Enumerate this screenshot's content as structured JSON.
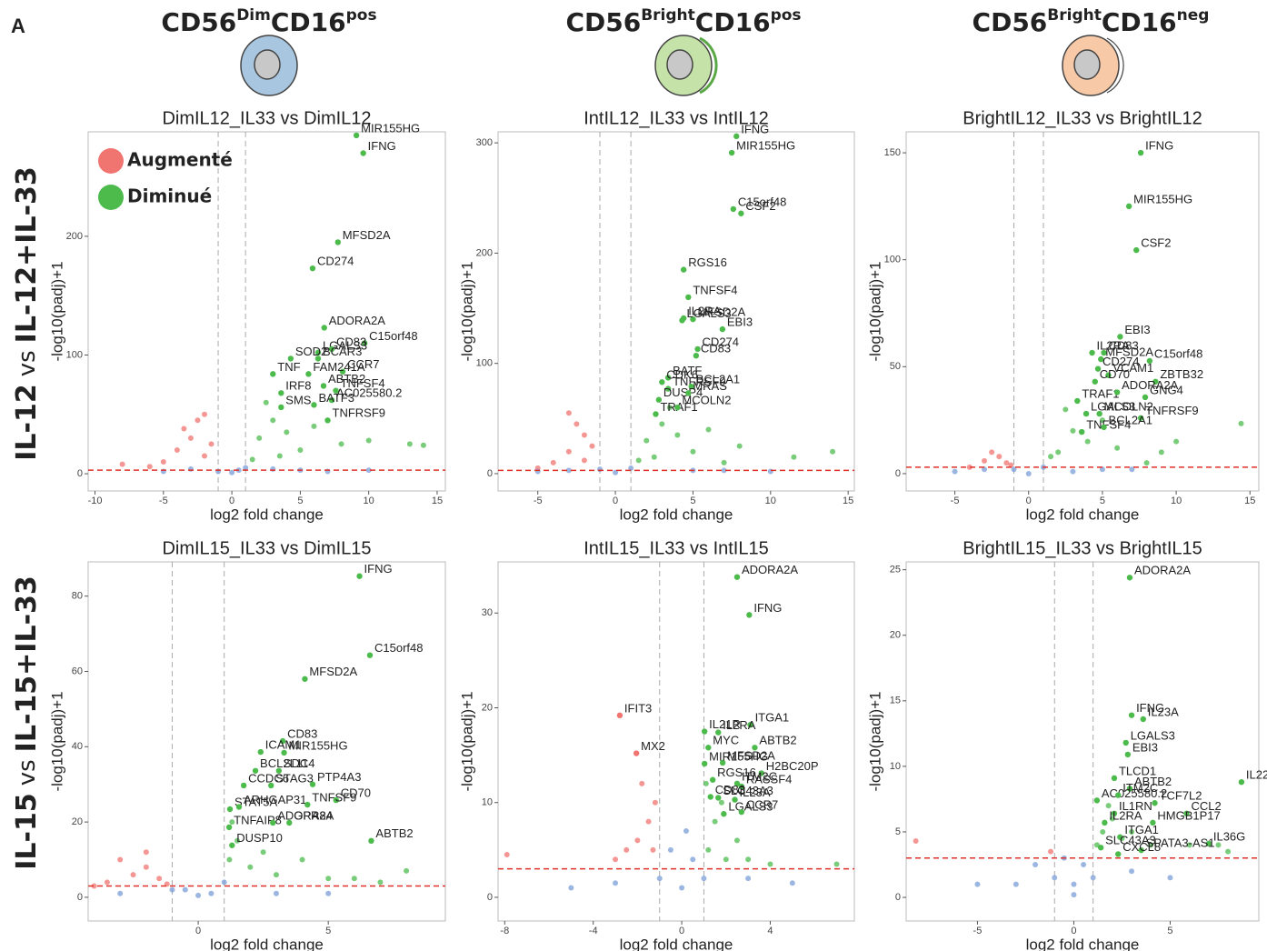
{
  "panel_label": "A",
  "columns": [
    {
      "base1": "CD56",
      "sup1": "Dim",
      "base2": "CD16",
      "sup2": "pos"
    },
    {
      "base1": "CD56",
      "sup1": "Bright",
      "base2": "CD16",
      "sup2": "pos"
    },
    {
      "base1": "CD56",
      "sup1": "Bright",
      "base2": "CD16",
      "sup2": "neg"
    }
  ],
  "rows": [
    {
      "left": "IL-12",
      "middle": "vs",
      "right": "IL-12+IL-33"
    },
    {
      "left": "IL-15",
      "middle": "vs",
      "right": "IL-15+IL-33"
    }
  ],
  "chart_data": [
    {
      "type": "scatter",
      "title": "DimIL12_IL33 vs DimIL12",
      "x_label": "log2 fold change",
      "y_label": "-log10(padj)+1",
      "xlim": [
        -10.5,
        15.6
      ],
      "ylim": [
        -14.5,
        288
      ],
      "xticks": [
        -10,
        -5,
        0,
        5,
        10,
        15
      ],
      "yticks": [
        0,
        100,
        200
      ],
      "thresholds": {
        "x": [
          -1,
          1
        ],
        "y": 3
      },
      "threshold_color": "#e0302a",
      "legend": true,
      "series": [
        {
          "name": "Augmenté",
          "color": "#f07470",
          "x": [
            -3,
            -2,
            -4,
            -2.5,
            -5,
            -3.5,
            -1.5,
            -6,
            -8,
            -2
          ],
          "values": [
            30,
            50,
            20,
            45,
            10,
            38,
            25,
            6,
            8,
            15
          ]
        },
        {
          "name": "Diminué",
          "color": "#4cbb4c",
          "x": [
            2,
            3,
            4,
            2.5,
            5,
            6,
            8,
            10,
            13,
            14,
            3.5,
            1.5
          ],
          "values": [
            30,
            45,
            35,
            60,
            20,
            40,
            25,
            28,
            25,
            24,
            15,
            12
          ]
        },
        {
          "color": "#7b9ed8",
          "x": [
            -1,
            0,
            0.5,
            -3,
            3,
            5,
            -5,
            7,
            10,
            1
          ],
          "values": [
            2,
            1,
            3,
            4,
            4,
            3,
            2,
            2,
            3,
            5
          ]
        }
      ],
      "labels": {
        "genes": [
          "MIR155HG",
          "IFNG",
          "MFSD2A",
          "CD274",
          "ADORA2A",
          "C15orf48",
          "LGALS3",
          "CD83",
          "SOD2",
          "BCAR3",
          "CCR7",
          "TNF",
          "FAM241A",
          "IRF8",
          "ABTB2",
          "TNFSF4",
          "AC025580.2",
          "SMS",
          "BATF3",
          "TNFRSF9"
        ],
        "x": [
          9.1,
          9.6,
          7.75,
          5.9,
          6.75,
          9.7,
          6.3,
          7.3,
          4.3,
          6.3,
          8.1,
          3.0,
          5.6,
          3.6,
          6.7,
          7.6,
          7.3,
          3.6,
          6.0,
          7.0
        ],
        "y": [
          285,
          270,
          195,
          173,
          123,
          110,
          102,
          105,
          97,
          97,
          86,
          84,
          84,
          68,
          74,
          70,
          62,
          56,
          58,
          45
        ]
      }
    },
    {
      "type": "scatter",
      "title": "IntIL12_IL33 vs IntIL12",
      "x_label": "log2 fold change",
      "y_label": "-log10(padj)+1",
      "xlim": [
        -7.56,
        15.4
      ],
      "ylim": [
        -15.7,
        310
      ],
      "xticks": [
        -5,
        0,
        5,
        10,
        15
      ],
      "yticks": [
        0,
        100,
        200,
        300
      ],
      "thresholds": {
        "x": [
          -1,
          1
        ],
        "y": 3
      },
      "threshold_color": "#e0302a",
      "series": [
        {
          "color": "#f07470",
          "x": [
            -2,
            -3,
            -2.5,
            -1.5,
            -4,
            -3,
            -2,
            -5
          ],
          "values": [
            35,
            20,
            45,
            25,
            10,
            55,
            12,
            5
          ]
        },
        {
          "color": "#4cbb4c",
          "x": [
            2,
            3,
            2.5,
            4,
            5,
            6,
            7,
            8,
            11.5,
            14,
            1.5,
            3.5
          ],
          "values": [
            30,
            45,
            15,
            35,
            20,
            40,
            10,
            25,
            15,
            20,
            12,
            60
          ]
        },
        {
          "color": "#7b9ed8",
          "x": [
            -1,
            0,
            1,
            -5,
            5,
            7,
            -3,
            10
          ],
          "values": [
            4,
            1,
            5,
            2,
            3,
            3,
            3,
            2
          ]
        }
      ],
      "labels": {
        "genes": [
          "IFNG",
          "MIR155HG",
          "C15orf48",
          "CSF2",
          "RGS16",
          "TNFSF4",
          "IL2RA",
          "MFSD2A",
          "LGALS3",
          "CD274",
          "EBI3",
          "BATF",
          "CD83",
          "CDK6",
          "TNFRSF9",
          "BCL2A1",
          "DUSP4",
          "MRAS",
          "TRAF1",
          "MCOLN2"
        ],
        "x": [
          7.8,
          7.5,
          7.6,
          8.1,
          4.4,
          4.7,
          4.4,
          5.0,
          4.3,
          5.3,
          6.9,
          3.4,
          5.2,
          3.0,
          3.4,
          4.9,
          2.8,
          4.7,
          2.6,
          4.0
        ],
        "y": [
          306,
          291,
          240,
          236,
          185,
          160,
          141,
          140,
          139,
          113,
          131,
          87,
          107,
          83,
          77,
          79,
          67,
          73,
          54,
          60
        ]
      }
    },
    {
      "type": "scatter",
      "title": "BrightIL12_IL33 vs BrightIL12",
      "x_label": "log2 fold change",
      "y_label": "-log10(padj)+1",
      "xlim": [
        -8.3,
        15.6
      ],
      "ylim": [
        -8.1,
        159.8
      ],
      "xticks": [
        -5,
        0,
        5,
        10,
        15
      ],
      "yticks": [
        0,
        50,
        100,
        150
      ],
      "thresholds": {
        "x": [
          -1,
          1
        ],
        "y": 3
      },
      "threshold_color": "#e0302a",
      "series": [
        {
          "color": "#f07470",
          "x": [
            -2,
            -1.5,
            -3,
            -2.5,
            -4,
            -1.2
          ],
          "values": [
            8,
            5,
            6,
            10,
            3,
            4
          ]
        },
        {
          "color": "#4cbb4c",
          "x": [
            2,
            3,
            4,
            2.5,
            5,
            6,
            9,
            10,
            1.5,
            8,
            14.4
          ],
          "values": [
            10,
            20,
            15,
            30,
            25,
            12,
            10,
            15,
            8,
            5,
            23.4
          ]
        },
        {
          "color": "#7b9ed8",
          "x": [
            -1,
            0,
            1,
            -5,
            5,
            -3,
            3,
            7
          ],
          "values": [
            2,
            0,
            3,
            1,
            2,
            2,
            1,
            2
          ]
        }
      ],
      "labels": {
        "genes": [
          "IFNG",
          "MIR155HG",
          "CSF2",
          "EBI3",
          "CD83",
          "IL2RA",
          "MFSD2A",
          "C15orf48",
          "CD274",
          "VCAM1",
          "ZBTB32",
          "CD70",
          "TRAF1",
          "GNG4",
          "ADORA2A",
          "TNFRSF9",
          "LGALS3",
          "MCOLN2",
          "TNFSF4",
          "BCL2A1"
        ],
        "x": [
          7.6,
          6.8,
          7.3,
          6.2,
          5.1,
          4.3,
          4.9,
          8.2,
          4.7,
          5.4,
          8.6,
          4.5,
          3.3,
          7.9,
          6.0,
          7.6,
          3.9,
          4.8,
          3.6,
          5.1
        ],
        "y": [
          150,
          125,
          104.5,
          64,
          56.5,
          56.5,
          53.5,
          52.7,
          49,
          46,
          43,
          43,
          34,
          35.7,
          38,
          26,
          28,
          28,
          19.5,
          21.7
        ]
      }
    },
    {
      "type": "scatter",
      "title": "DimIL15_IL33 vs DimIL15",
      "x_label": "log2 fold change",
      "y_label": "-log10(padj)+1",
      "xlim": [
        -4.23,
        9.5
      ],
      "ylim": [
        -6.3,
        89.1
      ],
      "xticks": [
        0,
        5
      ],
      "yticks": [
        0,
        20,
        40,
        60,
        80
      ],
      "thresholds": {
        "x": [
          -1,
          1
        ],
        "y": 3
      },
      "threshold_color": "#e0302a",
      "series": [
        {
          "color": "#f07470",
          "x": [
            -1.5,
            -2,
            -3,
            -2.5,
            -3.5,
            -1.2,
            -2,
            -4
          ],
          "values": [
            5,
            8,
            10,
            6,
            4,
            3.5,
            12,
            3
          ]
        },
        {
          "color": "#4cbb4c",
          "x": [
            1.2,
            1.5,
            2,
            2.5,
            3,
            4,
            5,
            6,
            8,
            1.3,
            7
          ],
          "values": [
            10,
            15,
            8,
            12,
            6,
            10,
            5,
            5,
            7,
            20,
            4
          ]
        },
        {
          "color": "#7b9ed8",
          "x": [
            -0.5,
            0,
            0.5,
            -1,
            1,
            -3,
            3,
            5
          ],
          "values": [
            2,
            0.5,
            1,
            2,
            4,
            1,
            1,
            1
          ]
        }
      ],
      "labels": {
        "genes": [
          "IFNG",
          "C15orf48",
          "MFSD2A",
          "CD83",
          "ICAM1",
          "MIR155HG",
          "BCL2L11",
          "SDC4",
          "CCDC6",
          "STAG3",
          "PTP4A3",
          "CD70",
          "STAT5A",
          "ARHGAP31",
          "TNFSF9",
          "ABTB2",
          "TNFAIP8",
          "ADORA2A",
          "GPR84",
          "DUSP10"
        ],
        "x": [
          6.2,
          6.6,
          4.1,
          3.25,
          2.4,
          3.3,
          2.2,
          3.1,
          1.75,
          2.8,
          4.4,
          5.3,
          1.22,
          1.57,
          4.2,
          6.65,
          1.19,
          2.87,
          3.5,
          1.3
        ],
        "y": [
          85.3,
          64.3,
          58,
          41.5,
          38.6,
          38.4,
          33.6,
          33.6,
          29.7,
          29.7,
          30,
          25.8,
          23.4,
          24,
          24.6,
          15,
          18.6,
          19.8,
          19.8,
          13.8
        ]
      }
    },
    {
      "type": "scatter",
      "title": "IntIL15_IL33 vs IntIL15",
      "x_label": "log2 fold change",
      "y_label": "-log10(padj)+1",
      "xlim": [
        -8.3,
        7.8
      ],
      "ylim": [
        -2.5,
        35.4
      ],
      "xticks": [
        -8,
        -4,
        0,
        4
      ],
      "yticks": [
        0,
        10,
        20,
        30
      ],
      "thresholds": {
        "x": [
          -1,
          1
        ],
        "y": 3
      },
      "threshold_color": "#e0302a",
      "series": [
        {
          "color": "#f07470",
          "x": [
            -1.5,
            -2,
            -1.2,
            -2.5,
            -1.8,
            -3,
            -7.9,
            -1.3
          ],
          "values": [
            8,
            6,
            10,
            5,
            12,
            4,
            4.5,
            5
          ]
        },
        {
          "color": "#4cbb4c",
          "x": [
            1.2,
            1.5,
            2,
            2.5,
            3,
            1.8,
            4,
            7,
            1.1
          ],
          "values": [
            5,
            8,
            4,
            6,
            4,
            10,
            3.5,
            3.5,
            12
          ]
        },
        {
          "color": "#7b9ed8",
          "x": [
            -1,
            0,
            0.5,
            -0.5,
            1,
            -3,
            3,
            -5,
            5,
            0.2
          ],
          "values": [
            2,
            1,
            4,
            5,
            2,
            1.5,
            2,
            1,
            1.5,
            7
          ]
        }
      ],
      "labels": {
        "genes": [
          "ADORA2A",
          "IFNG",
          "IFIT3",
          "ITGA1",
          "IL21R",
          "IL2RA",
          "ABTB2",
          "MYC",
          "MFSD2A",
          "MX2",
          "MIR155HG",
          "H2BC20P",
          "ITM2C",
          "RGS16",
          "RASSF4",
          "CD83",
          "SLC43A3",
          "IL23A",
          "LGALS3",
          "CCR7"
        ],
        "x": [
          2.5,
          3.05,
          -2.8,
          3.1,
          1.03,
          1.65,
          3.3,
          1.2,
          1.85,
          -2.05,
          1.03,
          3.6,
          2.5,
          1.4,
          2.7,
          1.3,
          1.65,
          2.4,
          1.9,
          2.7
        ],
        "y": [
          33.8,
          29.8,
          19.2,
          18.2,
          17.5,
          17.4,
          15.8,
          15.8,
          14.2,
          15.2,
          14.1,
          13.1,
          12,
          12.4,
          11.7,
          10.6,
          10.5,
          10.3,
          8.8,
          9
        ]
      }
    },
    {
      "type": "scatter",
      "title": "BrightIL15_IL33 vs BrightIL15",
      "x_label": "log2 fold change",
      "y_label": "-log10(padj)+1",
      "xlim": [
        -8.7,
        9.6
      ],
      "ylim": [
        -1.8,
        25.6
      ],
      "xticks": [
        -5,
        0,
        5
      ],
      "yticks": [
        0,
        5,
        10,
        15,
        20,
        25
      ],
      "thresholds": {
        "x": [
          -1,
          1
        ],
        "y": 3
      },
      "threshold_color": "#e0302a",
      "series": [
        {
          "color": "#f07470",
          "x": [
            -8.2,
            -1.2
          ],
          "values": [
            4.3,
            3.5
          ]
        },
        {
          "color": "#4cbb4c",
          "x": [
            1.2,
            1.5,
            2,
            2.5,
            3,
            4,
            6,
            7.5,
            1.8,
            8
          ],
          "values": [
            4,
            5,
            6,
            4.5,
            5,
            4,
            4,
            4,
            7,
            3.5
          ]
        },
        {
          "color": "#7b9ed8",
          "x": [
            -1,
            0,
            0.5,
            -0.5,
            1,
            -3,
            3,
            -5,
            5,
            0,
            -2
          ],
          "values": [
            1.5,
            1,
            2.5,
            3,
            1.5,
            1,
            2,
            1,
            1.5,
            0.2,
            2.5
          ]
        }
      ],
      "labels": {
        "genes": [
          "ADORA2A",
          "IFNG",
          "IL23A",
          "IL22",
          "LGALS3",
          "EBI3",
          "TLCD1",
          "ABTB2",
          "AC025580.2",
          "ITM2C",
          "TCF7L2",
          "CCL2",
          "IL1RN",
          "HMGB1P17",
          "IL2RA",
          "IL36G",
          "ITGA1",
          "SLC43A3",
          "SPATA3-AS1",
          "CXCL8"
        ],
        "x": [
          2.9,
          3.0,
          3.6,
          8.7,
          2.7,
          2.8,
          2.1,
          2.9,
          1.2,
          2.3,
          4.2,
          5.85,
          2.1,
          4.1,
          1.6,
          7.0,
          2.4,
          1.4,
          3.5,
          2.3
        ],
        "y": [
          24.4,
          13.9,
          13.6,
          8.8,
          11.8,
          10.9,
          9.1,
          8.3,
          7.4,
          7.8,
          7.2,
          6.4,
          6.4,
          5.7,
          5.7,
          4.1,
          4.6,
          3.8,
          3.6,
          3.3
        ]
      }
    }
  ]
}
